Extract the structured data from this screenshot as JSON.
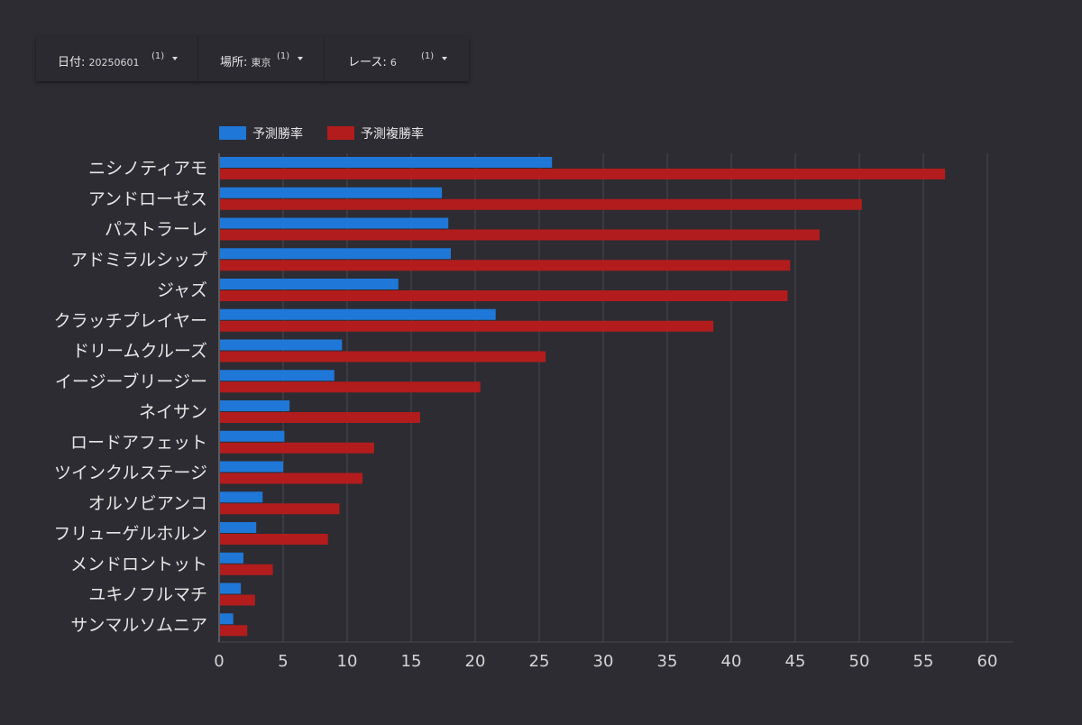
{
  "filters": [
    {
      "label": "日付",
      "value": "20250601",
      "count": "(1)"
    },
    {
      "label": "場所",
      "value": "東京",
      "count": "(1)"
    },
    {
      "label": "レース",
      "value": "6",
      "count": "(1)"
    }
  ],
  "colors": {
    "background": "#2d2c32",
    "win_series": "#1f78d8",
    "place_series": "#b31c1c",
    "grid": "#4a4950",
    "text": "#e6e6e6"
  },
  "chart_data": {
    "type": "bar",
    "orientation": "horizontal",
    "title": "",
    "xlabel": "",
    "ylabel": "",
    "xlim": [
      0,
      62
    ],
    "xticks": [
      0,
      5,
      10,
      15,
      20,
      25,
      30,
      35,
      40,
      45,
      50,
      55,
      60
    ],
    "grid": true,
    "legend_position": "top-left",
    "categories": [
      "ニシノティアモ",
      "アンドローゼス",
      "パストラーレ",
      "アドミラルシップ",
      "ジャズ",
      "クラッチプレイヤー",
      "ドリームクルーズ",
      "イージーブリージー",
      "ネイサン",
      "ロードアフェット",
      "ツインクルステージ",
      "オルソビアンコ",
      "フリューゲルホルン",
      "メンドロントット",
      "ユキノフルマチ",
      "サンマルソムニア"
    ],
    "series": [
      {
        "name": "予測勝率",
        "color": "#1f78d8",
        "values": [
          26.0,
          17.4,
          17.9,
          18.1,
          14.0,
          21.6,
          9.6,
          9.0,
          5.5,
          5.1,
          5.0,
          3.4,
          2.9,
          1.9,
          1.7,
          1.1
        ]
      },
      {
        "name": "予測複勝率",
        "color": "#b31c1c",
        "values": [
          56.7,
          50.2,
          46.9,
          44.6,
          44.4,
          38.6,
          25.5,
          20.4,
          15.7,
          12.1,
          11.2,
          9.4,
          8.5,
          4.2,
          2.8,
          2.2
        ]
      }
    ]
  }
}
